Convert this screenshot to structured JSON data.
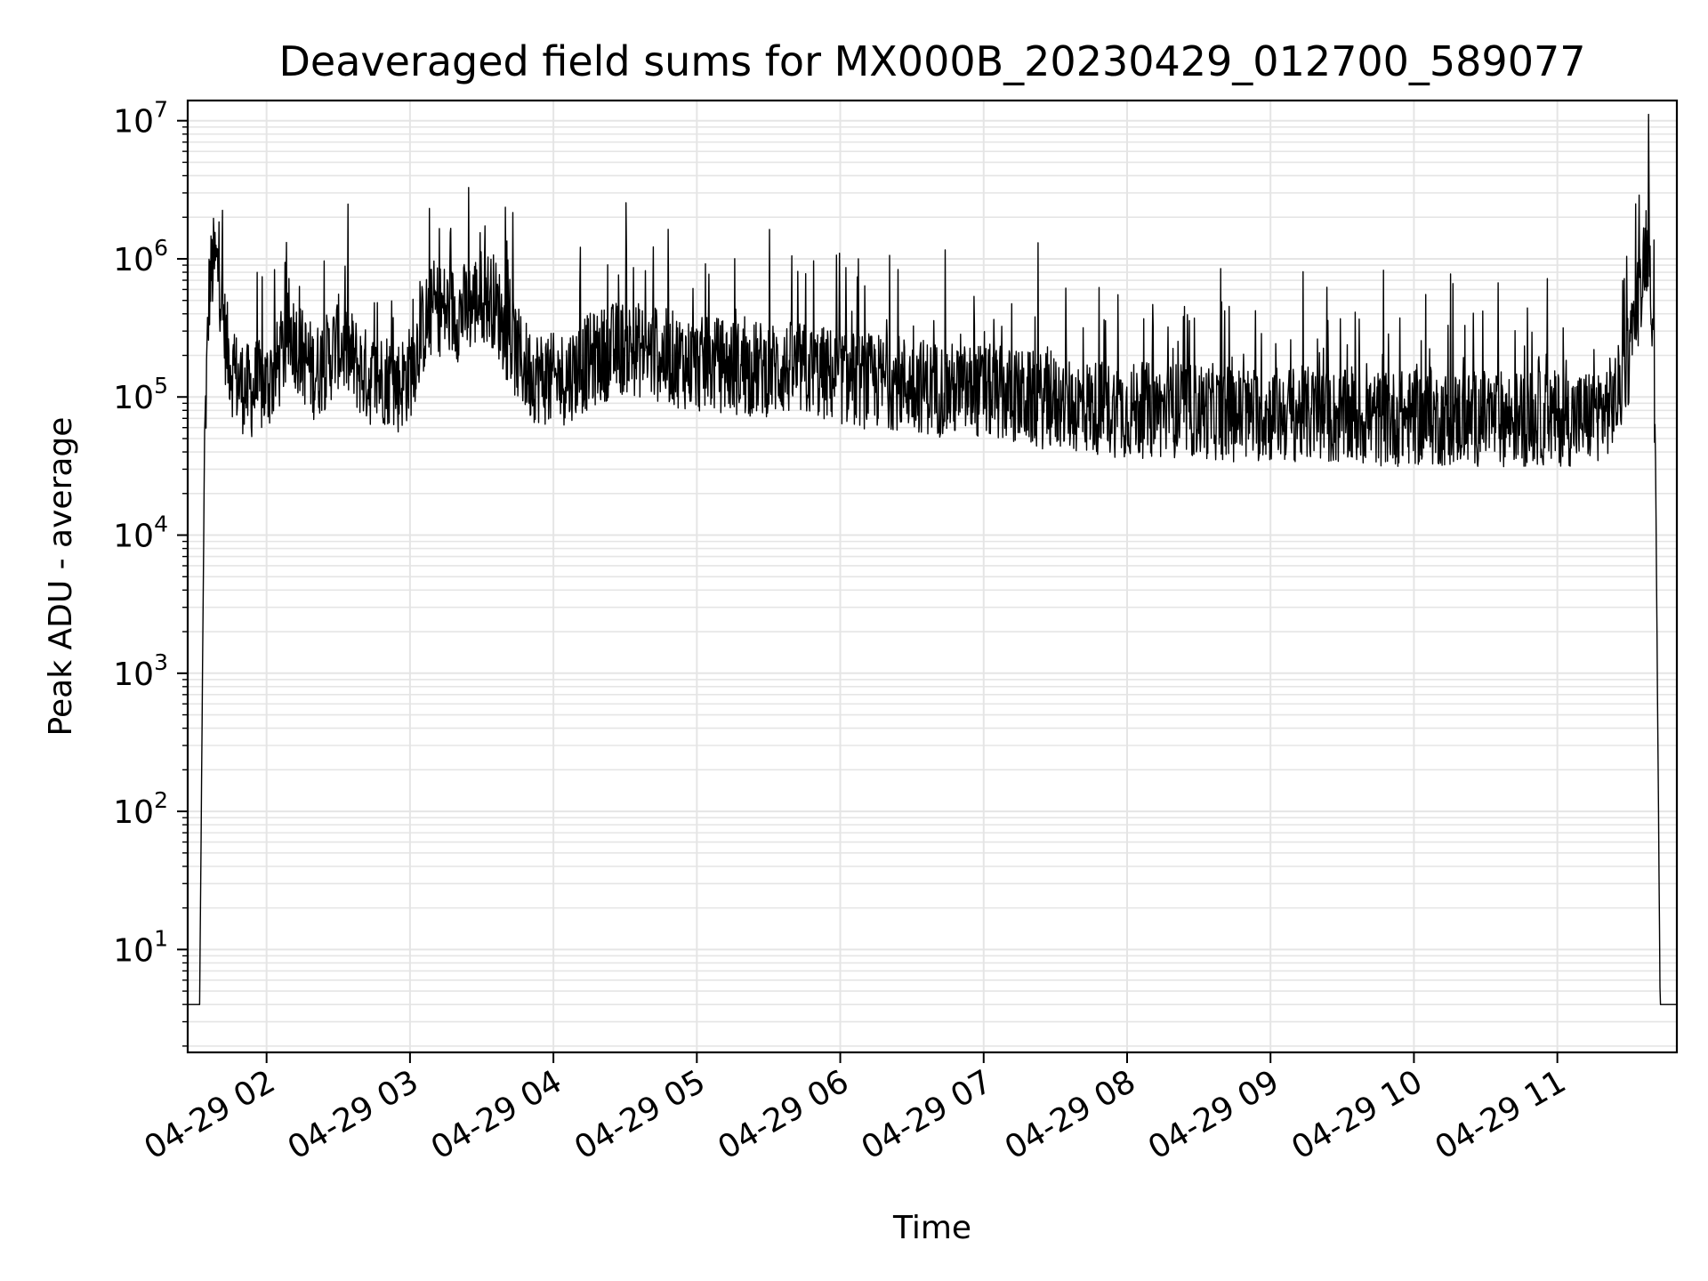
{
  "chart_data": {
    "type": "line",
    "title": "Deaveraged field sums for MX000B_20230429_012700_589077",
    "xlabel": "Time",
    "ylabel": "Peak ADU - average",
    "yscale": "log",
    "ylim": [
      1.8,
      14000000
    ],
    "xlim": [
      "2023-04-29 01:27",
      "2023-04-29 11:50"
    ],
    "x_tick_labels": [
      "04-29 02",
      "04-29 03",
      "04-29 04",
      "04-29 05",
      "04-29 06",
      "04-29 07",
      "04-29 08",
      "04-29 09",
      "04-29 10",
      "04-29 11"
    ],
    "x_ticks": [
      "2023-04-29 02:00",
      "2023-04-29 03:00",
      "2023-04-29 04:00",
      "2023-04-29 05:00",
      "2023-04-29 06:00",
      "2023-04-29 07:00",
      "2023-04-29 08:00",
      "2023-04-29 09:00",
      "2023-04-29 10:00",
      "2023-04-29 11:00"
    ],
    "y_ticks": [
      {
        "base": "10",
        "exp": "1",
        "value": 10
      },
      {
        "base": "10",
        "exp": "2",
        "value": 100
      },
      {
        "base": "10",
        "exp": "3",
        "value": 1000
      },
      {
        "base": "10",
        "exp": "4",
        "value": 10000
      },
      {
        "base": "10",
        "exp": "5",
        "value": 100000
      },
      {
        "base": "10",
        "exp": "6",
        "value": 1000000
      },
      {
        "base": "10",
        "exp": "7",
        "value": 10000000
      }
    ],
    "grid": true,
    "line_color": "#000000",
    "grid_color": "#e5e5e5",
    "series": [
      {
        "x": [
          "2023-04-29 01:28",
          "2023-04-29 01:30",
          "2023-04-29 01:32",
          "2023-04-29 01:34",
          "2023-04-29 01:36",
          "2023-04-29 01:37",
          "2023-04-29 01:38",
          "2023-04-29 01:39",
          "2023-04-29 01:40",
          "2023-04-29 01:41",
          "2023-04-29 01:42",
          "2023-04-29 01:43",
          "2023-04-29 01:44",
          "2023-04-29 01:45",
          "2023-04-29 01:46",
          "2023-04-29 01:48",
          "2023-04-29 01:50",
          "2023-04-29 01:52",
          "2023-04-29 01:54",
          "2023-04-29 01:56",
          "2023-04-29 02:00",
          "2023-04-29 02:05",
          "2023-04-29 02:10",
          "2023-04-29 02:15",
          "2023-04-29 02:20",
          "2023-04-29 02:25",
          "2023-04-29 02:30",
          "2023-04-29 02:35",
          "2023-04-29 02:40",
          "2023-04-29 02:45",
          "2023-04-29 02:50",
          "2023-04-29 02:55",
          "2023-04-29 03:00",
          "2023-04-29 03:05",
          "2023-04-29 03:10",
          "2023-04-29 03:15",
          "2023-04-29 03:20",
          "2023-04-29 03:25",
          "2023-04-29 03:30",
          "2023-04-29 03:35",
          "2023-04-29 03:40",
          "2023-04-29 03:45",
          "2023-04-29 03:50",
          "2023-04-29 03:55",
          "2023-04-29 04:00",
          "2023-04-29 04:05",
          "2023-04-29 04:10",
          "2023-04-29 04:15",
          "2023-04-29 04:20",
          "2023-04-29 04:25",
          "2023-04-29 04:30",
          "2023-04-29 04:35",
          "2023-04-29 04:40",
          "2023-04-29 04:45",
          "2023-04-29 04:50",
          "2023-04-29 04:55",
          "2023-04-29 05:00",
          "2023-04-29 05:10",
          "2023-04-29 05:20",
          "2023-04-29 05:30",
          "2023-04-29 05:40",
          "2023-04-29 05:50",
          "2023-04-29 06:00",
          "2023-04-29 06:10",
          "2023-04-29 06:20",
          "2023-04-29 06:30",
          "2023-04-29 06:40",
          "2023-04-29 06:50",
          "2023-04-29 07:00",
          "2023-04-29 07:15",
          "2023-04-29 07:30",
          "2023-04-29 07:45",
          "2023-04-29 08:00",
          "2023-04-29 08:15",
          "2023-04-29 08:30",
          "2023-04-29 08:45",
          "2023-04-29 09:00",
          "2023-04-29 09:15",
          "2023-04-29 09:30",
          "2023-04-29 09:45",
          "2023-04-29 10:00",
          "2023-04-29 10:15",
          "2023-04-29 10:30",
          "2023-04-29 10:45",
          "2023-04-29 11:00",
          "2023-04-29 11:10",
          "2023-04-29 11:15",
          "2023-04-29 11:20",
          "2023-04-29 11:25",
          "2023-04-29 11:30",
          "2023-04-29 11:35",
          "2023-04-29 11:37",
          "2023-04-29 11:39",
          "2023-04-29 11:41",
          "2023-04-29 11:43",
          "2023-04-29 11:45",
          "2023-04-29 11:47",
          "2023-04-29 11:49"
        ],
        "y": [
          4,
          4,
          4,
          40000,
          600000,
          800000,
          950000,
          900000,
          800000,
          550000,
          350000,
          250000,
          200000,
          180000,
          150000,
          130000,
          120000,
          110000,
          110000,
          115000,
          120000,
          170000,
          300000,
          200000,
          150000,
          180000,
          250000,
          200000,
          150000,
          130000,
          140000,
          120000,
          150000,
          300000,
          450000,
          420000,
          400000,
          450000,
          550000,
          500000,
          300000,
          200000,
          150000,
          140000,
          130000,
          140000,
          160000,
          180000,
          200000,
          220000,
          230000,
          220000,
          210000,
          200000,
          190000,
          180000,
          170000,
          170000,
          160000,
          160000,
          160000,
          150000,
          140000,
          130000,
          130000,
          125000,
          115000,
          110000,
          110000,
          100000,
          90000,
          85000,
          80000,
          80000,
          80000,
          75000,
          75000,
          75000,
          70000,
          70000,
          70000,
          70000,
          70000,
          70000,
          70000,
          70000,
          75000,
          80000,
          100000,
          200000,
          700000,
          1300000,
          1000000,
          50000,
          4,
          4,
          4,
          4
        ]
      }
    ]
  }
}
